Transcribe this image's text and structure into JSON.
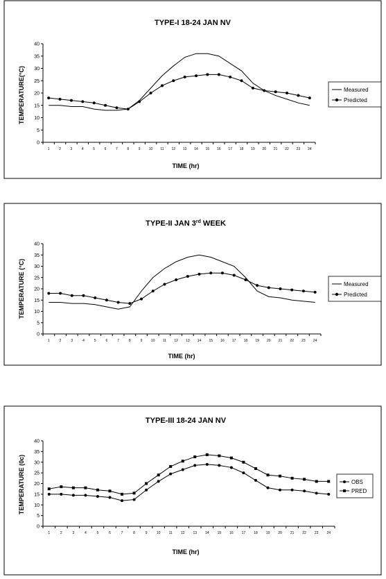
{
  "charts": {
    "c1": {
      "title": "TYPE-I 18-24 JAN NV",
      "xlabel": "TIME (hr)",
      "ylabel": "TEMPERATURE(°C)",
      "legend": [
        "Measured",
        "Predicted"
      ]
    },
    "c2": {
      "title_main": "TYPE-II JAN 3",
      "title_sup": "rd",
      "title_tail": " WEEK",
      "xlabel": "TIME (hr)",
      "ylabel": "TEMPERATURE (°C)",
      "legend": [
        "Measured",
        "Predicted"
      ]
    },
    "c3": {
      "title": "TYPE-III 18-24 JAN NV",
      "xlabel": "TIME (hr)",
      "ylabel": "TEMPERATURE (0c)",
      "legend": [
        "OBS",
        "PRED"
      ]
    }
  },
  "chart_data": [
    {
      "type": "line",
      "title": "TYPE-I 18-24 JAN NV",
      "xlabel": "TIME (hr)",
      "ylabel": "TEMPERATURE(°C)",
      "ylim": [
        0,
        40
      ],
      "yticks": [
        0,
        5,
        10,
        15,
        20,
        25,
        30,
        35,
        40
      ],
      "categories": [
        "1",
        "2",
        "3",
        "4",
        "5",
        "6",
        "7",
        "8",
        "9",
        "10",
        "11",
        "12",
        "13",
        "14",
        "15",
        "16",
        "17",
        "18",
        "19",
        "20",
        "21",
        "22",
        "23",
        "24"
      ],
      "legend_position": "right",
      "series": [
        {
          "name": "Measured",
          "marker": "none",
          "values": [
            15,
            15,
            14.5,
            14.5,
            13.5,
            13,
            13,
            13.5,
            17,
            22,
            27,
            31,
            34.5,
            36,
            36,
            35,
            32,
            29,
            24,
            21,
            19,
            17.5,
            16,
            15
          ]
        },
        {
          "name": "Predicted",
          "marker": "circle",
          "values": [
            18,
            17.5,
            17,
            16.5,
            16,
            15,
            14,
            13.5,
            16.5,
            20,
            23,
            25,
            26.5,
            27,
            27.5,
            27.5,
            26.5,
            25,
            22,
            21,
            20.5,
            20,
            19,
            18
          ]
        }
      ]
    },
    {
      "type": "line",
      "title": "TYPE-II JAN 3rd WEEK",
      "xlabel": "TIME (hr)",
      "ylabel": "TEMPERATURE (°C)",
      "ylim": [
        0,
        40
      ],
      "yticks": [
        0,
        5,
        10,
        15,
        20,
        25,
        30,
        35,
        40
      ],
      "categories": [
        "1",
        "2",
        "3",
        "4",
        "5",
        "6",
        "7",
        "8",
        "9",
        "10",
        "11",
        "12",
        "13",
        "14",
        "15",
        "16",
        "17",
        "18",
        "19",
        "20",
        "21",
        "22",
        "23",
        "24"
      ],
      "legend_position": "right",
      "series": [
        {
          "name": "Measured",
          "marker": "none",
          "values": [
            14,
            14,
            13.5,
            13.5,
            13,
            12,
            11,
            12,
            19,
            25,
            29,
            32,
            34,
            35,
            34,
            32,
            30,
            25,
            19,
            16.5,
            16,
            15,
            14.5,
            14
          ]
        },
        {
          "name": "Predicted",
          "marker": "circle",
          "values": [
            18,
            18,
            17,
            17,
            16,
            15,
            14,
            13.5,
            15.5,
            19,
            22,
            24,
            25.5,
            26.5,
            27,
            27,
            26,
            24,
            21.5,
            20.5,
            20,
            19.5,
            19,
            18.5
          ]
        }
      ]
    },
    {
      "type": "line",
      "title": "TYPE-III 18-24 JAN NV",
      "xlabel": "TIME (hr)",
      "ylabel": "TEMPERATURE (0c)",
      "ylim": [
        0,
        40
      ],
      "yticks": [
        0,
        5,
        10,
        15,
        20,
        25,
        30,
        35,
        40
      ],
      "categories": [
        "1",
        "2",
        "3",
        "4",
        "5",
        "6",
        "7",
        "8",
        "9",
        "10",
        "11",
        "12",
        "13",
        "14",
        "15",
        "16",
        "17",
        "18",
        "19",
        "20",
        "21",
        "22",
        "23",
        "24"
      ],
      "legend_position": "right",
      "series": [
        {
          "name": "OBS",
          "marker": "circle",
          "values": [
            15,
            15,
            14.5,
            14.5,
            14,
            13.5,
            12,
            12.5,
            17,
            21,
            24.5,
            26.5,
            28.5,
            29,
            28.5,
            27.5,
            25,
            21.5,
            18,
            17,
            17,
            16.5,
            15.5,
            15
          ]
        },
        {
          "name": "PRED",
          "marker": "square",
          "values": [
            17.5,
            18.5,
            18,
            18,
            17,
            16.5,
            15,
            15.5,
            20,
            24,
            28,
            30.5,
            32.5,
            33.5,
            33,
            32,
            30,
            27,
            24,
            23.5,
            22.5,
            22,
            21,
            21
          ]
        }
      ]
    }
  ]
}
